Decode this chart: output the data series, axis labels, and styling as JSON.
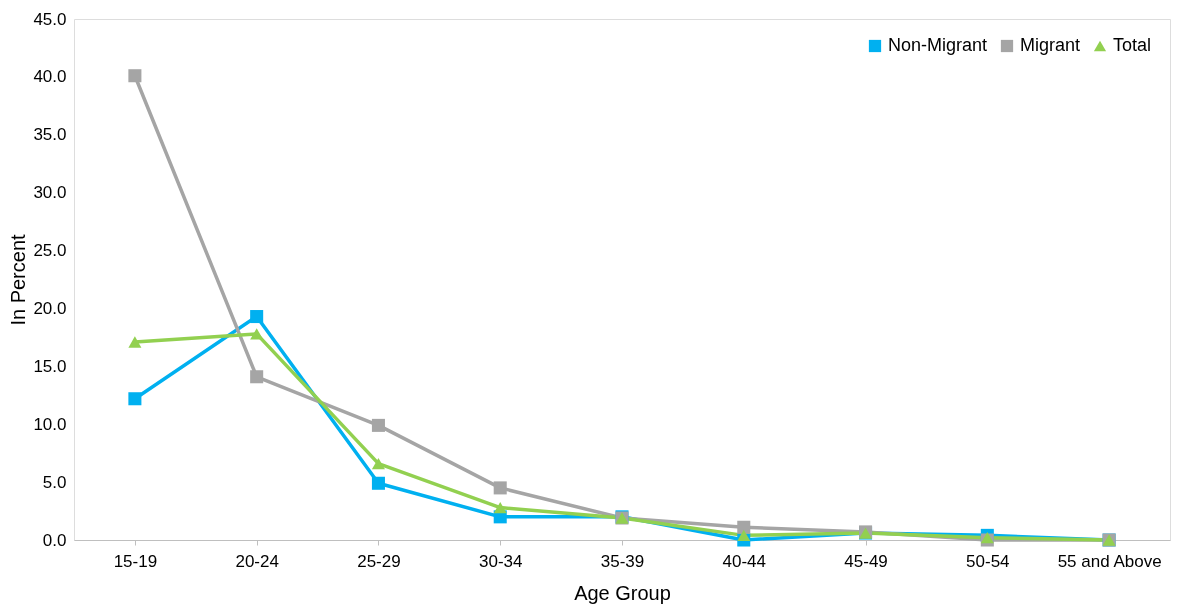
{
  "chart_data": {
    "type": "line",
    "xlabel": "Age Group",
    "ylabel": "In Percent",
    "categories": [
      "15-19",
      "20-24",
      "25-29",
      "30-34",
      "35-39",
      "40-44",
      "45-49",
      "50-54",
      "55 and Above"
    ],
    "series": [
      {
        "name": "Non-Migrant",
        "color": "#00b0f0",
        "marker": "square",
        "values": [
          12.2,
          19.3,
          4.9,
          2.0,
          2.0,
          0.0,
          0.6,
          0.4,
          0.0
        ]
      },
      {
        "name": "Migrant",
        "color": "#a5a5a5",
        "marker": "square",
        "values": [
          40.1,
          14.1,
          9.9,
          4.5,
          1.9,
          1.1,
          0.7,
          0.0,
          0.0
        ]
      },
      {
        "name": "Total",
        "color": "#92d050",
        "marker": "triangle",
        "values": [
          17.1,
          17.8,
          6.6,
          2.8,
          1.9,
          0.4,
          0.6,
          0.2,
          0.0
        ]
      }
    ],
    "ylim": [
      0,
      45
    ],
    "yticks": [
      {
        "value": 0,
        "label": "0.0"
      },
      {
        "value": 5,
        "label": "5.0"
      },
      {
        "value": 10,
        "label": "10.0"
      },
      {
        "value": 15,
        "label": "15.0"
      },
      {
        "value": 20,
        "label": "20.0"
      },
      {
        "value": 25,
        "label": "25.0"
      },
      {
        "value": 30,
        "label": "30.0"
      },
      {
        "value": 35,
        "label": "35.0"
      },
      {
        "value": 40,
        "label": "40.0"
      },
      {
        "value": 45,
        "label": "45.0"
      }
    ],
    "grid": false,
    "legend": "top right",
    "line_style": "solid"
  }
}
